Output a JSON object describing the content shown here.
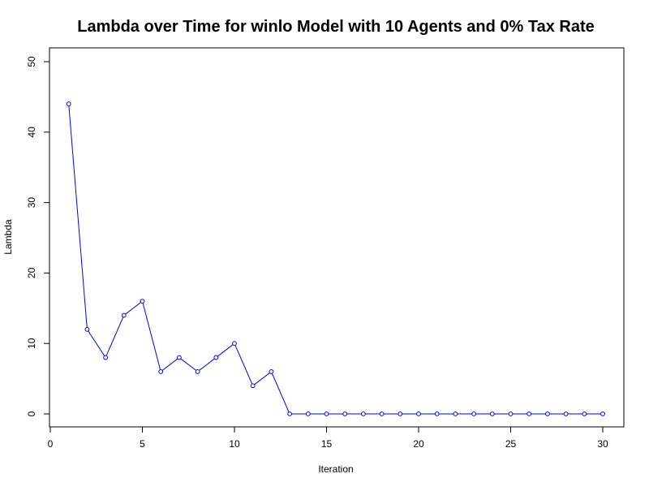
{
  "chart_data": {
    "type": "line",
    "title": "Lambda over Time for winlo Model with 10 Agents and 0% Tax Rate",
    "xlabel": "Iteration",
    "ylabel": "Lambda",
    "xlim": [
      0,
      30
    ],
    "ylim": [
      0,
      50
    ],
    "xticks": [
      0,
      5,
      10,
      15,
      20,
      25,
      30
    ],
    "yticks": [
      0,
      10,
      20,
      30,
      40,
      50
    ],
    "grid": false,
    "legend": "none",
    "series": [
      {
        "color": "#0000ff",
        "marker": "open-circle",
        "x": [
          1,
          2,
          3,
          4,
          5,
          6,
          7,
          8,
          9,
          10,
          11,
          12,
          13,
          14,
          15,
          16,
          17,
          18,
          19,
          20,
          21,
          22,
          23,
          24,
          25,
          26,
          27,
          28,
          29,
          30
        ],
        "y": [
          44,
          12,
          8,
          14,
          16,
          6,
          8,
          6,
          8,
          10,
          4,
          6,
          0,
          0,
          0,
          0,
          0,
          0,
          0,
          0,
          0,
          0,
          0,
          0,
          0,
          0,
          0,
          0,
          0,
          0
        ]
      }
    ]
  }
}
